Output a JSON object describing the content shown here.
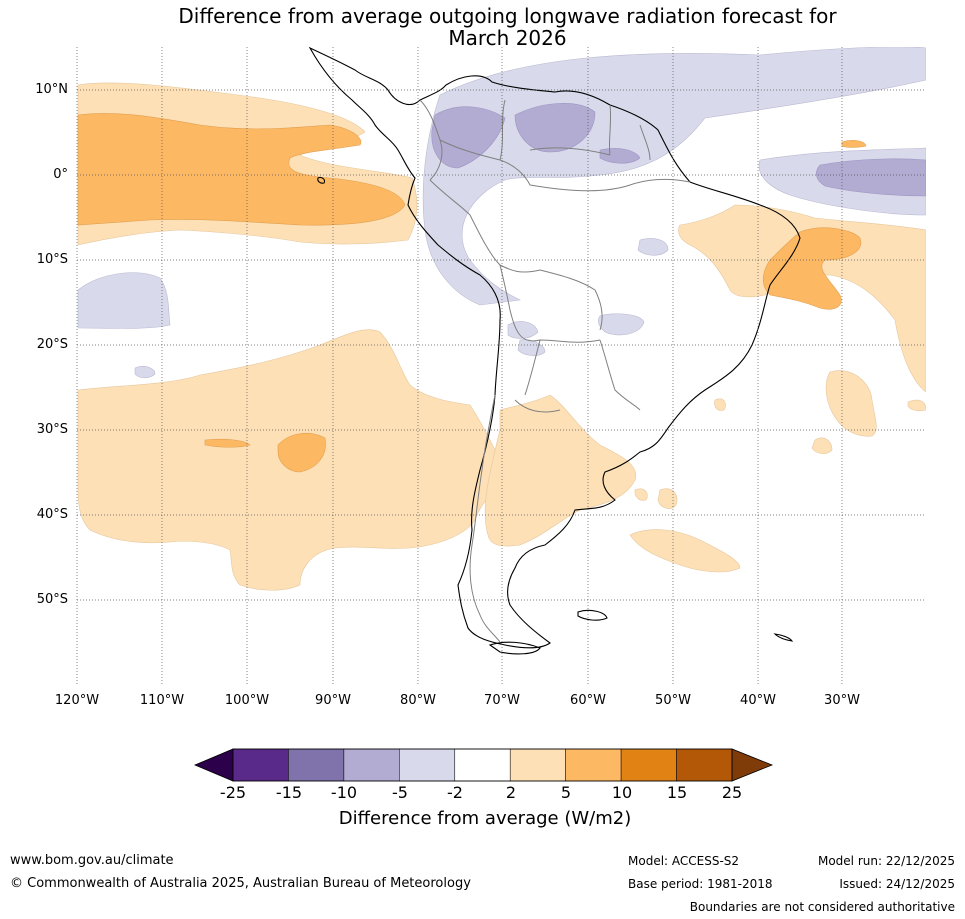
{
  "title_line1": "Difference from average outgoing longwave radiation forecast for",
  "title_line2": "March 2026",
  "lat_labels": [
    "10°N",
    "0°",
    "10°S",
    "20°S",
    "30°S",
    "40°S",
    "50°S"
  ],
  "lon_labels": [
    "120°W",
    "110°W",
    "100°W",
    "90°W",
    "80°W",
    "70°W",
    "60°W",
    "50°W",
    "40°W",
    "30°W"
  ],
  "colorbar": {
    "ticks": [
      "-25",
      "-15",
      "-10",
      "-5",
      "-2",
      "2",
      "5",
      "10",
      "15",
      "25"
    ],
    "colors": [
      "#2d004b",
      "#5a2a8a",
      "#8073ac",
      "#b2abd2",
      "#d8daeb",
      "#ffffff",
      "#fee0b6",
      "#fdb863",
      "#e08214",
      "#b35806",
      "#7f3b08"
    ],
    "title": "Difference from average (W/m2)"
  },
  "footer": {
    "website": "www.bom.gov.au/climate",
    "copyright": "© Commonwealth of Australia 2025, Australian Bureau of Meteorology",
    "model": "Model: ACCESS-S2",
    "base_period": "Base period: 1981-2018",
    "model_run": "Model run: 22/12/2025",
    "issued": "Issued: 24/12/2025",
    "disclaimer": "Boundaries are not considered authoritative"
  }
}
